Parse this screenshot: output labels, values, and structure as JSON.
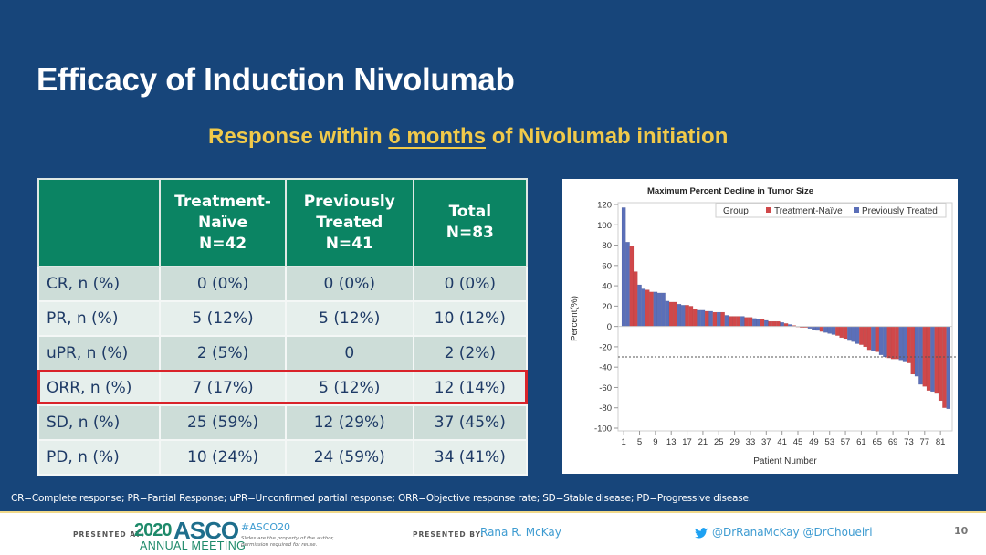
{
  "slide": {
    "title": "Efficacy of Induction Nivolumab",
    "subtitle_pre": "Response within ",
    "subtitle_ul": "6 months",
    "subtitle_post": " of Nivolumab initiation",
    "caption": "CR=Complete response; PR=Partial Response; uPR=Unconfirmed partial response; ORR=Objective response rate; SD=Stable disease; PD=Progressive disease."
  },
  "table": {
    "headers": [
      {
        "lines": [
          "",
          "",
          ""
        ]
      },
      {
        "lines": [
          "Treatment-",
          "Naïve",
          "N=42"
        ]
      },
      {
        "lines": [
          "Previously",
          "Treated",
          "N=41"
        ]
      },
      {
        "lines": [
          "Total",
          "N=83",
          ""
        ]
      }
    ],
    "rows": [
      {
        "label": "CR, n (%)",
        "cells": [
          "0 (0%)",
          "0 (0%)",
          "0 (0%)"
        ]
      },
      {
        "label": "PR, n (%)",
        "cells": [
          "5 (12%)",
          "5 (12%)",
          "10 (12%)"
        ]
      },
      {
        "label": "uPR, n (%)",
        "cells": [
          "2 (5%)",
          "0",
          "2 (2%)"
        ]
      },
      {
        "label": "ORR, n (%)",
        "cells": [
          "7 (17%)",
          "5 (12%)",
          "12 (14%)"
        ],
        "highlighted": true
      },
      {
        "label": "SD, n (%)",
        "cells": [
          "25 (59%)",
          "12 (29%)",
          "37 (45%)"
        ]
      },
      {
        "label": "PD, n (%)",
        "cells": [
          "10 (24%)",
          "24 (59%)",
          "34 (41%)"
        ]
      }
    ],
    "highlight_color": "#d9232a"
  },
  "chart_data": {
    "type": "bar",
    "title": "Maximum Percent Decline in Tumor Size",
    "xlabel": "Patient Number",
    "ylabel": "Percent(%)",
    "ylim": [
      -100,
      120
    ],
    "yticks": [
      120,
      100,
      80,
      60,
      40,
      20,
      0,
      -20,
      -40,
      -60,
      -80,
      -100
    ],
    "xticks": [
      1,
      5,
      9,
      13,
      17,
      21,
      25,
      29,
      33,
      37,
      41,
      45,
      49,
      53,
      57,
      61,
      65,
      69,
      73,
      77,
      81
    ],
    "reference_line": -30,
    "legend": {
      "title": "Group",
      "position": "top-right",
      "entries": [
        {
          "name": "Treatment-Naïve",
          "color": "#d0484a"
        },
        {
          "name": "Previously Treated",
          "color": "#5b6fb8"
        }
      ]
    },
    "groups": [
      "P",
      "P",
      "T",
      "T",
      "P",
      "P",
      "T",
      "T",
      "P",
      "P",
      "P",
      "P",
      "T",
      "T",
      "P",
      "P",
      "T",
      "T",
      "T",
      "P",
      "P",
      "T",
      "P",
      "T",
      "P",
      "T",
      "P",
      "T",
      "T",
      "T",
      "P",
      "T",
      "T",
      "P",
      "P",
      "T",
      "P",
      "T",
      "T",
      "T",
      "P",
      "T",
      "P",
      "T",
      "T",
      "T",
      "T",
      "P",
      "P",
      "P",
      "T",
      "P",
      "P",
      "P",
      "T",
      "T",
      "T",
      "P",
      "P",
      "P",
      "T",
      "T",
      "T",
      "P",
      "T",
      "P",
      "P",
      "T",
      "T",
      "T",
      "P",
      "P",
      "T",
      "T",
      "P",
      "P",
      "T",
      "T",
      "P",
      "T",
      "T",
      "T",
      "P"
    ],
    "values": [
      117,
      83,
      79,
      54,
      41,
      37,
      36,
      34,
      34,
      33,
      33,
      25,
      24,
      24,
      22,
      21,
      21,
      20,
      17,
      16,
      16,
      15,
      15,
      14,
      14,
      14,
      11,
      10,
      10,
      10,
      10,
      9,
      9,
      8,
      7,
      7,
      6,
      5,
      5,
      5,
      4,
      3,
      2,
      1,
      0,
      -1,
      -1,
      -2,
      -3,
      -4,
      -5,
      -6,
      -7,
      -8,
      -9,
      -11,
      -12,
      -14,
      -15,
      -17,
      -18,
      -20,
      -23,
      -24,
      -25,
      -28,
      -30,
      -31,
      -32,
      -32,
      -33,
      -35,
      -36,
      -47,
      -49,
      -57,
      -59,
      -63,
      -64,
      -66,
      -73,
      -80,
      -81
    ]
  },
  "footer": {
    "presented_at": "PRESENTED AT:",
    "logo_year": "2020",
    "logo_org": "ASCO",
    "logo_sub": "ANNUAL MEETING",
    "hashtag": "#ASCO20",
    "note_line1": "Slides are the property of the author,",
    "note_line2": "permission required for reuse.",
    "presented_by": "PRESENTED BY:",
    "presenter": "Rana R. McKay",
    "handles": "@DrRanaMcKay @DrChoueiri",
    "page_number": "10"
  }
}
